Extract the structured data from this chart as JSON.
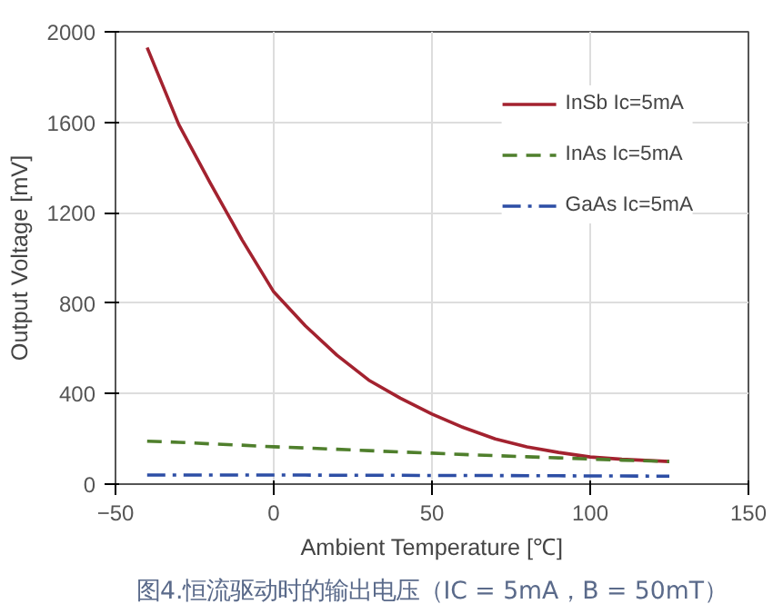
{
  "chart_data": {
    "type": "line",
    "xlabel": "Ambient Temperature [℃]",
    "ylabel": "Output Voltage [mV]",
    "annotations": [
      "图4.恒流驱动时的输出电压（IC = 5mA，B = 50mT）"
    ],
    "x": [
      -40,
      -30,
      -20,
      -10,
      0,
      10,
      20,
      30,
      40,
      50,
      60,
      70,
      80,
      90,
      100,
      110,
      125
    ],
    "series": [
      {
        "name": "InSb Ic=5mA",
        "color": "#a3222f",
        "line_style": "solid",
        "values": [
          1930,
          1590,
          1330,
          1080,
          850,
          700,
          570,
          460,
          380,
          310,
          250,
          200,
          165,
          140,
          120,
          110,
          100
        ]
      },
      {
        "name": "InAs Ic=5mA",
        "color": "#4f7f2c",
        "line_style": "dashed",
        "values": [
          190,
          185,
          178,
          172,
          165,
          160,
          154,
          148,
          142,
          137,
          131,
          126,
          121,
          116,
          111,
          106,
          100
        ]
      },
      {
        "name": "GaAs Ic=5mA",
        "color": "#2d4ea5",
        "line_style": "dashdot",
        "values": [
          40,
          40,
          40,
          40,
          40,
          40,
          39,
          39,
          39,
          38,
          38,
          38,
          37,
          37,
          36,
          36,
          35
        ]
      }
    ],
    "xlim": [
      -50,
      150
    ],
    "xticks": [
      -50,
      0,
      50,
      100,
      150
    ],
    "ylim": [
      0,
      2000
    ],
    "yticks": [
      0,
      400,
      800,
      1200,
      1600,
      2000
    ],
    "grid": true,
    "legend": "top right",
    "marker": "none"
  }
}
